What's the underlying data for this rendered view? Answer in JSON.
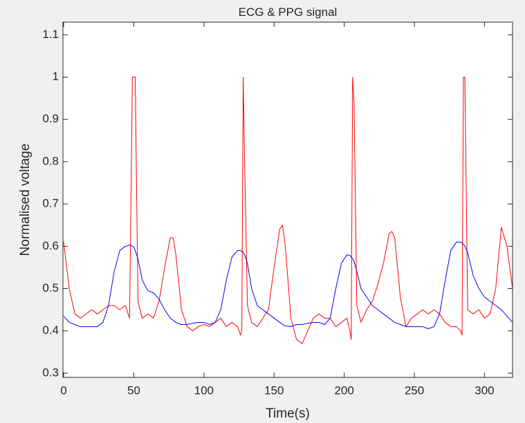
{
  "chart_data": {
    "type": "line",
    "title": "ECG & PPG signal",
    "xlabel": "Time(s)",
    "ylabel": "Normalised voltage",
    "xlim": [
      -0.5,
      320
    ],
    "ylim": [
      0.29,
      1.13
    ],
    "xticks": [
      0,
      50,
      100,
      150,
      200,
      250,
      300
    ],
    "yticks": [
      0.3,
      0.4,
      0.5,
      0.6,
      0.7,
      0.8,
      0.9,
      1,
      1.1
    ],
    "grid": false,
    "box": true,
    "x": [
      0,
      4,
      8,
      12,
      16,
      20,
      24,
      28,
      32,
      36,
      40,
      44,
      47,
      49,
      50,
      51,
      53,
      56,
      60,
      64,
      68,
      72,
      76,
      78,
      80,
      84,
      88,
      92,
      96,
      100,
      104,
      108,
      112,
      116,
      120,
      124,
      126,
      127,
      128,
      129,
      131,
      134,
      138,
      142,
      146,
      150,
      154,
      156,
      158,
      162,
      166,
      170,
      174,
      178,
      182,
      186,
      190,
      194,
      198,
      202,
      204,
      205,
      206,
      207,
      209,
      212,
      216,
      220,
      224,
      228,
      232,
      234,
      236,
      240,
      244,
      248,
      252,
      256,
      260,
      264,
      268,
      272,
      276,
      280,
      283,
      284,
      285,
      286,
      288,
      292,
      296,
      300,
      304,
      308,
      312,
      316,
      320
    ],
    "series": [
      {
        "color": "#ff0000",
        "values": [
          0.61,
          0.5,
          0.44,
          0.43,
          0.44,
          0.45,
          0.44,
          0.45,
          0.46,
          0.46,
          0.45,
          0.46,
          0.43,
          1.0,
          1.0,
          1.0,
          0.47,
          0.43,
          0.44,
          0.43,
          0.47,
          0.55,
          0.62,
          0.62,
          0.58,
          0.45,
          0.41,
          0.4,
          0.41,
          0.415,
          0.41,
          0.42,
          0.43,
          0.41,
          0.42,
          0.41,
          0.39,
          0.4,
          1.0,
          0.8,
          0.46,
          0.42,
          0.41,
          0.43,
          0.45,
          0.55,
          0.64,
          0.65,
          0.6,
          0.43,
          0.38,
          0.37,
          0.4,
          0.43,
          0.44,
          0.43,
          0.43,
          0.41,
          0.42,
          0.43,
          0.4,
          0.38,
          1.0,
          0.94,
          0.46,
          0.42,
          0.45,
          0.47,
          0.51,
          0.56,
          0.63,
          0.635,
          0.62,
          0.48,
          0.41,
          0.43,
          0.44,
          0.45,
          0.44,
          0.45,
          0.44,
          0.42,
          0.41,
          0.41,
          0.4,
          0.39,
          1.0,
          1.0,
          0.45,
          0.44,
          0.45,
          0.43,
          0.44,
          0.5,
          0.645,
          0.6,
          0.5
        ]
      },
      {
        "color": "#0000ff",
        "values": [
          0.435,
          0.42,
          0.415,
          0.41,
          0.41,
          0.41,
          0.41,
          0.42,
          0.46,
          0.54,
          0.59,
          0.6,
          0.603,
          0.6,
          0.598,
          0.59,
          0.57,
          0.52,
          0.495,
          0.49,
          0.475,
          0.45,
          0.43,
          0.425,
          0.42,
          0.415,
          0.415,
          0.418,
          0.42,
          0.42,
          0.415,
          0.42,
          0.45,
          0.52,
          0.575,
          0.59,
          0.59,
          0.588,
          0.585,
          0.58,
          0.56,
          0.5,
          0.46,
          0.45,
          0.44,
          0.43,
          0.42,
          0.415,
          0.412,
          0.41,
          0.415,
          0.415,
          0.418,
          0.42,
          0.42,
          0.415,
          0.43,
          0.5,
          0.56,
          0.58,
          0.578,
          0.575,
          0.57,
          0.565,
          0.54,
          0.5,
          0.48,
          0.46,
          0.45,
          0.44,
          0.43,
          0.425,
          0.42,
          0.415,
          0.41,
          0.41,
          0.41,
          0.41,
          0.405,
          0.41,
          0.44,
          0.52,
          0.59,
          0.61,
          0.61,
          0.608,
          0.605,
          0.6,
          0.585,
          0.53,
          0.5,
          0.48,
          0.47,
          0.46,
          0.45,
          0.435,
          0.42
        ]
      }
    ]
  }
}
